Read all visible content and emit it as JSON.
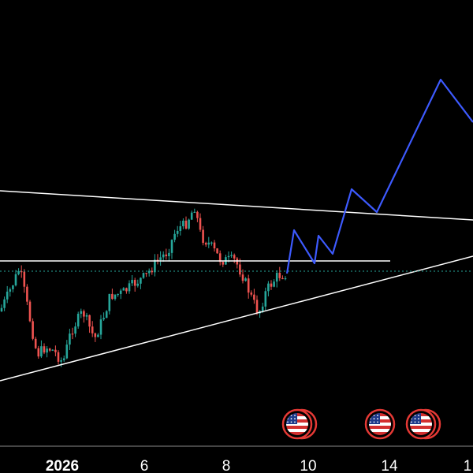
{
  "chart_data": {
    "type": "candlestick",
    "title": "",
    "xlabel": "",
    "ylabel": "",
    "x_tick_labels": [
      "2026",
      "6",
      "8",
      "10",
      "14",
      "1"
    ],
    "grid": false,
    "colors": {
      "background": "#000000",
      "up_candle": "#26a69a",
      "down_candle": "#ef5350",
      "trendline": "#ffffff",
      "projection": "#3d5afe",
      "price_line": "#26a69a"
    },
    "events": [
      {
        "type": "us-flag-event",
        "count": 2,
        "near_tick": "10"
      },
      {
        "type": "us-flag-event",
        "count": 1,
        "near_tick": "14"
      },
      {
        "type": "us-flag-event",
        "count": 2,
        "near_tick": "14"
      }
    ],
    "current_price_level": 0.615,
    "overlays": [
      "descending-resistance-line",
      "ascending-support-line",
      "horizontal-level",
      "projected-path"
    ]
  }
}
